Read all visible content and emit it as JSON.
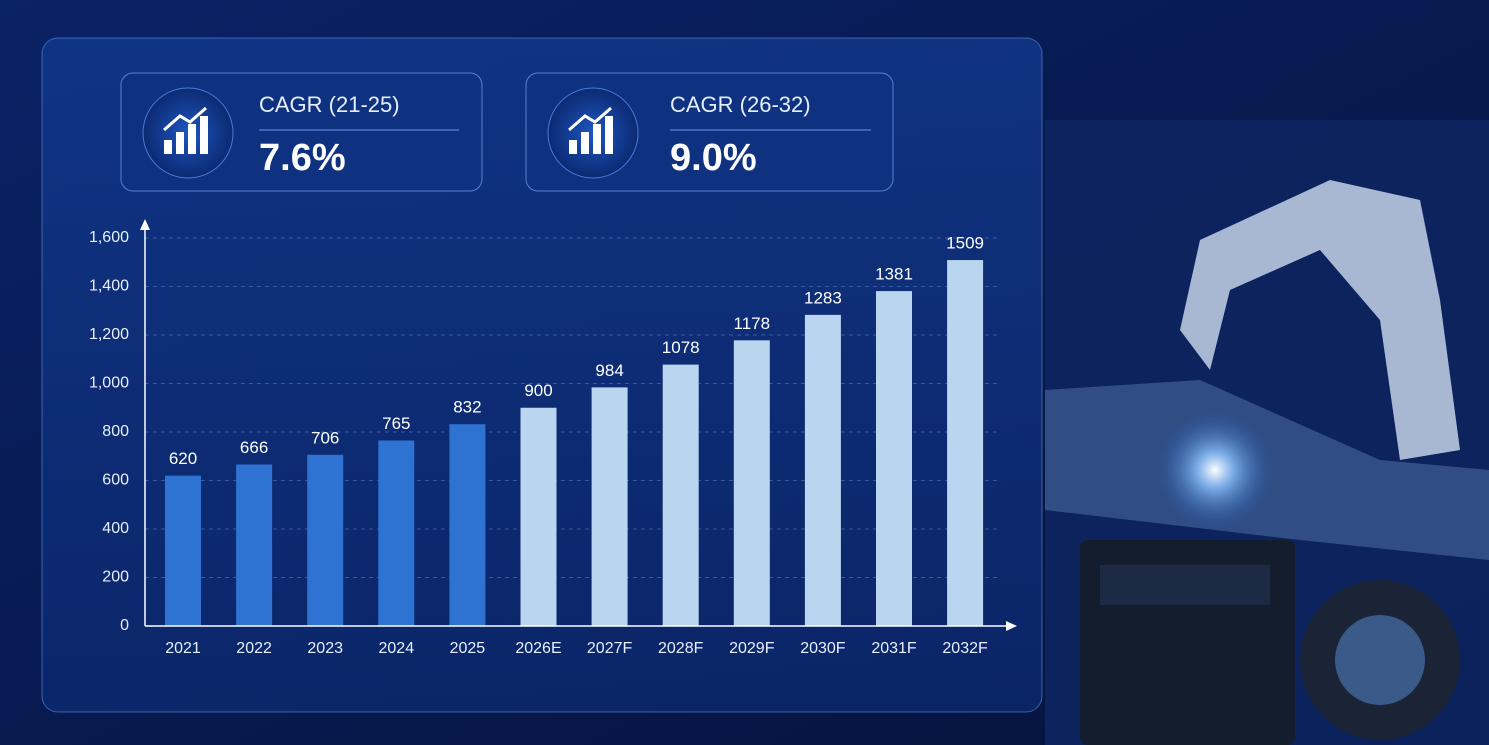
{
  "cards": [
    {
      "label": "CAGR (21-25)",
      "value": "7.6%"
    },
    {
      "label": "CAGR (26-32)",
      "value": "9.0%"
    }
  ],
  "chart_data": {
    "type": "bar",
    "categories": [
      "2021",
      "2022",
      "2023",
      "2024",
      "2025",
      "2026E",
      "2027F",
      "2028F",
      "2029F",
      "2030F",
      "2031F",
      "2032F"
    ],
    "values": [
      620,
      666,
      706,
      765,
      832,
      900,
      984,
      1078,
      1178,
      1283,
      1381,
      1509
    ],
    "colors": [
      "#2e72d2",
      "#2e72d2",
      "#2e72d2",
      "#2e72d2",
      "#2e72d2",
      "#b9d5ef",
      "#b9d5ef",
      "#b9d5ef",
      "#b9d5ef",
      "#b9d5ef",
      "#b9d5ef",
      "#b9d5ef"
    ],
    "ylim": [
      0,
      1600
    ],
    "yticks": [
      0,
      200,
      400,
      600,
      800,
      {
        "value": 1000,
        "label": "1,000"
      },
      {
        "value": 1200,
        "label": "1,200"
      },
      {
        "value": 1400,
        "label": "1,400"
      },
      {
        "value": 1600,
        "label": "1,600"
      }
    ],
    "grid": true
  }
}
